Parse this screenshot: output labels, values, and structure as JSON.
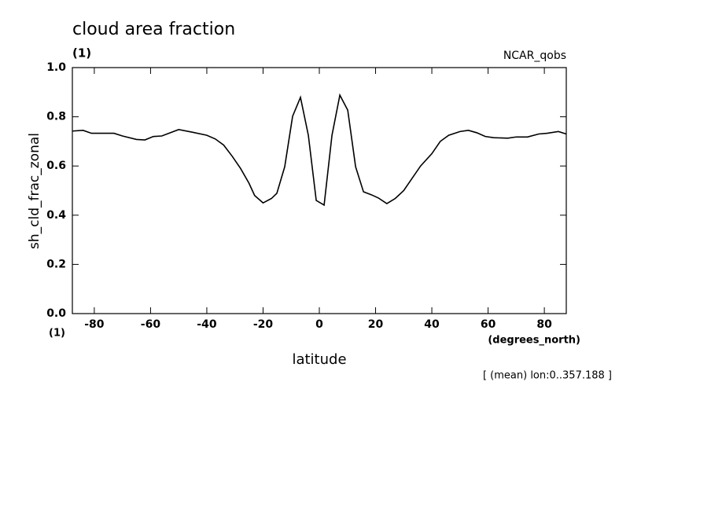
{
  "chart_data": {
    "type": "line",
    "title": "cloud area fraction",
    "subtitle": "(1)",
    "dataset_label": "NCAR_qobs",
    "y_label": "sh_cld_frac_zonal",
    "y_units": "(1)",
    "x_label": "latitude",
    "x_units": "(degrees_north)",
    "annotation": "[ (mean) lon:0..357.188 ]",
    "xlim": [
      -87.8,
      87.8
    ],
    "ylim": [
      0,
      1
    ],
    "xticks": [
      -80,
      -60,
      -40,
      -20,
      0,
      20,
      40,
      60,
      80
    ],
    "yticks": [
      {
        "value": 0,
        "label": "0.0"
      },
      0.2,
      0.4,
      0.6,
      0.8,
      {
        "value": 1,
        "label": "1.0"
      }
    ],
    "x": [
      -87.8,
      -84,
      -81,
      -73,
      -70,
      -65,
      -62,
      -59,
      -56,
      -50,
      -45,
      -40,
      -37,
      -34,
      -31,
      -28,
      -25,
      -23,
      -20,
      -17,
      -15.1,
      -12.3,
      -9.5,
      -6.7,
      -3.9,
      -1.1,
      1.7,
      4.5,
      7.3,
      10.1,
      12.9,
      15.7,
      18.5,
      21,
      24,
      27,
      30,
      33,
      36,
      40,
      43,
      46,
      50,
      53,
      56,
      59,
      62,
      67,
      70,
      74,
      78,
      81,
      85,
      87.8
    ],
    "series": [
      {
        "color": "#000000",
        "values": [
          0.742,
          0.745,
          0.733,
          0.733,
          0.722,
          0.708,
          0.706,
          0.72,
          0.722,
          0.748,
          0.737,
          0.725,
          0.71,
          0.685,
          0.64,
          0.59,
          0.53,
          0.48,
          0.45,
          0.468,
          0.489,
          0.597,
          0.802,
          0.879,
          0.725,
          0.46,
          0.441,
          0.725,
          0.888,
          0.827,
          0.597,
          0.495,
          0.483,
          0.47,
          0.447,
          0.468,
          0.5,
          0.55,
          0.6,
          0.65,
          0.7,
          0.725,
          0.74,
          0.745,
          0.735,
          0.72,
          0.715,
          0.713,
          0.718,
          0.718,
          0.73,
          0.733,
          0.74,
          0.73
        ]
      }
    ]
  }
}
